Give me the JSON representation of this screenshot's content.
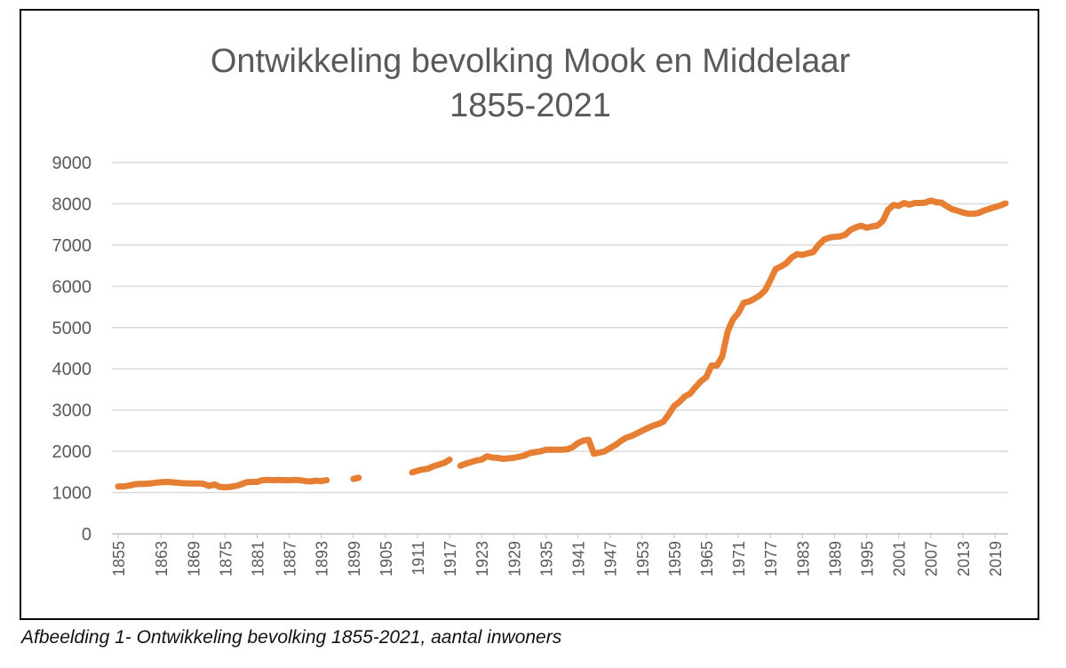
{
  "chart_data": {
    "type": "line",
    "title_lines": [
      "Ontwikkeling bevolking Mook en Middelaar",
      "1855-2021"
    ],
    "xlabel": "",
    "ylabel": "",
    "ylim": [
      0,
      9000
    ],
    "yticks": [
      "0",
      "1000",
      "2000",
      "3000",
      "4000",
      "5000",
      "6000",
      "7000",
      "8000",
      "9000"
    ],
    "xlim": [
      1855,
      2021
    ],
    "xticks": [
      "1855",
      "1863",
      "1869",
      "1875",
      "1881",
      "1887",
      "1893",
      "1899",
      "1905",
      "1911",
      "1917",
      "1923",
      "1929",
      "1935",
      "1941",
      "1947",
      "1953",
      "1959",
      "1965",
      "1971",
      "1977",
      "1983",
      "1989",
      "1995",
      "2001",
      "2007",
      "2013",
      "2019"
    ],
    "grid": "horizontal",
    "legend": "none",
    "series": [
      {
        "name": "aantal inwoners",
        "color": "#E67E33",
        "start_year": 1855,
        "values": [
          1150,
          1150,
          1170,
          1200,
          1210,
          1210,
          1220,
          1240,
          1250,
          1260,
          1250,
          1240,
          1230,
          1220,
          1220,
          1220,
          1210,
          1160,
          1200,
          1140,
          1130,
          1140,
          1160,
          1200,
          1250,
          1260,
          1260,
          1300,
          1310,
          1300,
          1310,
          1300,
          1300,
          1310,
          1300,
          1280,
          1270,
          1290,
          1280,
          1300,
          null,
          null,
          null,
          null,
          1330,
          1360,
          null,
          null,
          null,
          null,
          null,
          null,
          null,
          null,
          null,
          1490,
          1530,
          1560,
          1580,
          1640,
          1680,
          1720,
          1800,
          null,
          1650,
          1700,
          1740,
          1780,
          1800,
          1880,
          1850,
          1840,
          1820,
          1830,
          1840,
          1870,
          1900,
          1960,
          1980,
          2000,
          2040,
          2040,
          2040,
          2040,
          2050,
          2100,
          2200,
          2260,
          2280,
          1940,
          1970,
          2000,
          2080,
          2150,
          2250,
          2330,
          2370,
          2430,
          2500,
          2560,
          2620,
          2660,
          2720,
          2900,
          3100,
          3200,
          3330,
          3400,
          3560,
          3700,
          3800,
          4080,
          4080,
          4300,
          4900,
          5200,
          5350,
          5600,
          5630,
          5700,
          5780,
          5900,
          6150,
          6420,
          6480,
          6560,
          6700,
          6780,
          6760,
          6800,
          6830,
          7000,
          7130,
          7180,
          7200,
          7210,
          7250,
          7370,
          7430,
          7470,
          7420,
          7450,
          7470,
          7580,
          7850,
          7970,
          7950,
          8020,
          7980,
          8020,
          8020,
          8030,
          8080,
          8040,
          8030,
          7940,
          7870,
          7830,
          7790,
          7760,
          7760,
          7780,
          7840,
          7880,
          7920,
          7960,
          8010
        ]
      }
    ]
  },
  "caption": "Afbeelding 1- Ontwikkeling bevolking 1855-2021, aantal inwoners"
}
